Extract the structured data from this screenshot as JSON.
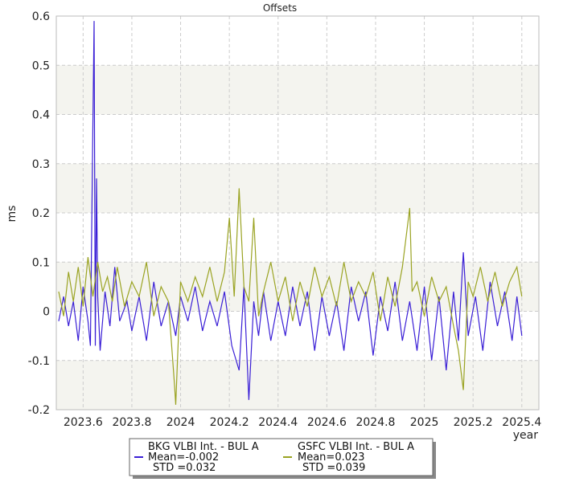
{
  "chart_data": {
    "type": "line",
    "title": "Offsets",
    "xlabel": "year",
    "ylabel": "ms",
    "xlim": [
      2023.49,
      2025.47
    ],
    "ylim": [
      -0.2,
      0.6
    ],
    "xticks": [
      "2023.6",
      "2023.8",
      "2024",
      "2024.2",
      "2024.4",
      "2024.6",
      "2024.8",
      "2025",
      "2025.2",
      "2025.4"
    ],
    "yticks": [
      "-0.2",
      "-0.1",
      "0",
      "0.1",
      "0.2",
      "0.3",
      "0.4",
      "0.5",
      "0.6"
    ],
    "grid": true,
    "legend_position": "bottom-center",
    "series": [
      {
        "name": "BKG VLBI Int. - BUL A",
        "color": "#3a1fd6",
        "legend_lines": [
          "BKG VLBI Int. - BUL A",
          "Mean=-0.002",
          "STD =0.032"
        ],
        "x": [
          2023.5,
          2023.52,
          2023.54,
          2023.56,
          2023.58,
          2023.6,
          2023.62,
          2023.63,
          2023.64,
          2023.645,
          2023.65,
          2023.655,
          2023.66,
          2023.67,
          2023.69,
          2023.71,
          2023.73,
          2023.75,
          2023.78,
          2023.8,
          2023.83,
          2023.86,
          2023.89,
          2023.92,
          2023.95,
          2023.98,
          2024.0,
          2024.03,
          2024.06,
          2024.09,
          2024.12,
          2024.15,
          2024.18,
          2024.21,
          2024.24,
          2024.26,
          2024.28,
          2024.3,
          2024.32,
          2024.34,
          2024.37,
          2024.4,
          2024.43,
          2024.46,
          2024.49,
          2024.52,
          2024.55,
          2024.58,
          2024.61,
          2024.64,
          2024.67,
          2024.7,
          2024.73,
          2024.76,
          2024.79,
          2024.82,
          2024.85,
          2024.88,
          2024.91,
          2024.94,
          2024.97,
          2025.0,
          2025.03,
          2025.06,
          2025.09,
          2025.12,
          2025.14,
          2025.16,
          2025.18,
          2025.21,
          2025.24,
          2025.27,
          2025.3,
          2025.33,
          2025.36,
          2025.38,
          2025.4
        ],
        "values": [
          -0.02,
          0.03,
          -0.03,
          0.02,
          -0.06,
          0.05,
          -0.02,
          -0.07,
          0.38,
          0.59,
          -0.07,
          0.27,
          0.03,
          -0.08,
          0.04,
          -0.03,
          0.09,
          -0.02,
          0.02,
          -0.04,
          0.03,
          -0.06,
          0.06,
          -0.03,
          0.02,
          -0.05,
          0.03,
          -0.02,
          0.05,
          -0.04,
          0.02,
          -0.03,
          0.04,
          -0.07,
          -0.12,
          0.05,
          -0.18,
          0.02,
          -0.05,
          0.04,
          -0.06,
          0.02,
          -0.05,
          0.05,
          -0.03,
          0.04,
          -0.08,
          0.03,
          -0.05,
          0.02,
          -0.08,
          0.05,
          -0.02,
          0.04,
          -0.09,
          0.03,
          -0.04,
          0.06,
          -0.06,
          0.02,
          -0.08,
          0.05,
          -0.1,
          0.03,
          -0.12,
          0.04,
          -0.06,
          0.12,
          -0.05,
          0.03,
          -0.08,
          0.06,
          -0.03,
          0.04,
          -0.06,
          0.03,
          -0.05
        ]
      },
      {
        "name": "GSFC VLBI Int. - BUL A",
        "color": "#9aa322",
        "legend_lines": [
          "GSFC VLBI Int. - BUL A",
          "Mean=0.023",
          "STD =0.039"
        ],
        "x": [
          2023.5,
          2023.52,
          2023.54,
          2023.56,
          2023.58,
          2023.6,
          2023.62,
          2023.64,
          2023.66,
          2023.68,
          2023.7,
          2023.72,
          2023.74,
          2023.77,
          2023.8,
          2023.83,
          2023.86,
          2023.89,
          2023.92,
          2023.95,
          2023.975,
          2023.98,
          2024.0,
          2024.03,
          2024.06,
          2024.09,
          2024.12,
          2024.15,
          2024.18,
          2024.2,
          2024.22,
          2024.24,
          2024.26,
          2024.28,
          2024.3,
          2024.32,
          2024.34,
          2024.37,
          2024.4,
          2024.43,
          2024.46,
          2024.49,
          2024.52,
          2024.55,
          2024.58,
          2024.61,
          2024.64,
          2024.67,
          2024.7,
          2024.73,
          2024.76,
          2024.79,
          2024.82,
          2024.85,
          2024.88,
          2024.91,
          2024.94,
          2024.95,
          2024.97,
          2025.0,
          2025.03,
          2025.06,
          2025.09,
          2025.12,
          2025.14,
          2025.16,
          2025.18,
          2025.2,
          2025.23,
          2025.26,
          2025.29,
          2025.32,
          2025.35,
          2025.38,
          2025.4
        ],
        "values": [
          0.04,
          -0.01,
          0.08,
          0.02,
          0.09,
          0.01,
          0.11,
          0.03,
          0.1,
          0.04,
          0.07,
          0.02,
          0.09,
          0.01,
          0.06,
          0.03,
          0.1,
          -0.01,
          0.05,
          0.02,
          -0.15,
          -0.19,
          0.06,
          0.02,
          0.07,
          0.03,
          0.09,
          0.02,
          0.08,
          0.19,
          0.03,
          0.25,
          0.05,
          0.02,
          0.19,
          -0.01,
          0.04,
          0.1,
          0.02,
          0.07,
          -0.02,
          0.06,
          0.01,
          0.09,
          0.03,
          0.07,
          0.01,
          0.1,
          0.02,
          0.06,
          0.03,
          0.08,
          -0.02,
          0.07,
          0.01,
          0.09,
          0.21,
          0.04,
          0.06,
          -0.01,
          0.07,
          0.02,
          0.05,
          -0.03,
          -0.08,
          -0.16,
          0.06,
          0.03,
          0.09,
          0.02,
          0.08,
          0.01,
          0.06,
          0.09,
          0.03
        ]
      }
    ]
  }
}
